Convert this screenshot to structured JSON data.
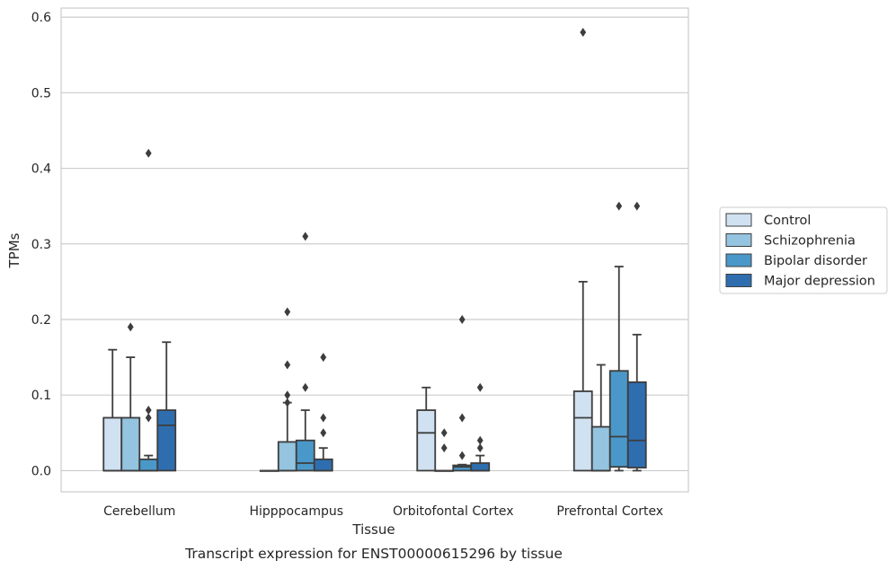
{
  "caption": "Transcript expression for ENST00000615296 by tissue",
  "chart_data": {
    "type": "box",
    "xlabel": "Tissue",
    "ylabel": "TPMs",
    "ylim": [
      -0.028,
      0.612
    ],
    "yticks": [
      0.0,
      0.1,
      0.2,
      0.3,
      0.4,
      0.5,
      0.6
    ],
    "ytick_labels": [
      "0.0",
      "0.1",
      "0.2",
      "0.3",
      "0.4",
      "0.5",
      "0.6"
    ],
    "grid": true,
    "legend_position": "right",
    "categories": [
      "Cerebellum",
      "Hipppocampus",
      "Orbitofontal Cortex",
      "Prefrontal Cortex"
    ],
    "series": [
      {
        "name": "Control",
        "color": "#d0e1f2",
        "boxes": [
          {
            "whislo": 0,
            "q1": 0,
            "med": 0,
            "q3": 0.07,
            "whishi": 0.16,
            "fliers": []
          },
          {
            "whislo": 0,
            "q1": 0,
            "med": 0,
            "q3": 0,
            "whishi": 0,
            "fliers": []
          },
          {
            "whislo": 0,
            "q1": 0,
            "med": 0.05,
            "q3": 0.08,
            "whishi": 0.11,
            "fliers": []
          },
          {
            "whislo": 0,
            "q1": 0,
            "med": 0.07,
            "q3": 0.105,
            "whishi": 0.25,
            "fliers": [
              0.58
            ]
          }
        ]
      },
      {
        "name": "Schizophrenia",
        "color": "#94c4df",
        "boxes": [
          {
            "whislo": 0,
            "q1": 0,
            "med": 0,
            "q3": 0.07,
            "whishi": 0.15,
            "fliers": [
              0.19
            ]
          },
          {
            "whislo": 0,
            "q1": 0,
            "med": 0,
            "q3": 0.038,
            "whishi": 0.09,
            "fliers": [
              0.09,
              0.1,
              0.14,
              0.21
            ]
          },
          {
            "whislo": 0,
            "q1": 0,
            "med": 0,
            "q3": 0,
            "whishi": 0,
            "fliers": [
              0.03,
              0.05
            ]
          },
          {
            "whislo": 0,
            "q1": 0,
            "med": 0,
            "q3": 0.058,
            "whishi": 0.14,
            "fliers": []
          }
        ]
      },
      {
        "name": "Bipolar disorder",
        "color": "#4a98c9",
        "boxes": [
          {
            "whislo": 0,
            "q1": 0,
            "med": 0,
            "q3": 0.015,
            "whishi": 0.02,
            "fliers": [
              0.07,
              0.08,
              0.42
            ]
          },
          {
            "whislo": 0,
            "q1": 0,
            "med": 0.01,
            "q3": 0.04,
            "whishi": 0.08,
            "fliers": [
              0.11,
              0.31
            ]
          },
          {
            "whislo": 0,
            "q1": 0,
            "med": 0.005,
            "q3": 0.007,
            "whishi": 0.008,
            "fliers": [
              0.02,
              0.07,
              0.2
            ]
          },
          {
            "whislo": 0,
            "q1": 0.005,
            "med": 0.045,
            "q3": 0.132,
            "whishi": 0.27,
            "fliers": [
              0.35
            ]
          }
        ]
      },
      {
        "name": "Major depression",
        "color": "#2e6eaf",
        "boxes": [
          {
            "whislo": 0,
            "q1": 0,
            "med": 0.06,
            "q3": 0.08,
            "whishi": 0.17,
            "fliers": []
          },
          {
            "whislo": 0,
            "q1": 0,
            "med": 0,
            "q3": 0.015,
            "whishi": 0.03,
            "fliers": [
              0.05,
              0.07,
              0.15
            ]
          },
          {
            "whislo": 0,
            "q1": 0,
            "med": 0,
            "q3": 0.01,
            "whishi": 0.02,
            "fliers": [
              0.03,
              0.04,
              0.11
            ]
          },
          {
            "whislo": 0,
            "q1": 0.004,
            "med": 0.04,
            "q3": 0.117,
            "whishi": 0.18,
            "fliers": [
              0.35
            ]
          }
        ]
      }
    ]
  }
}
